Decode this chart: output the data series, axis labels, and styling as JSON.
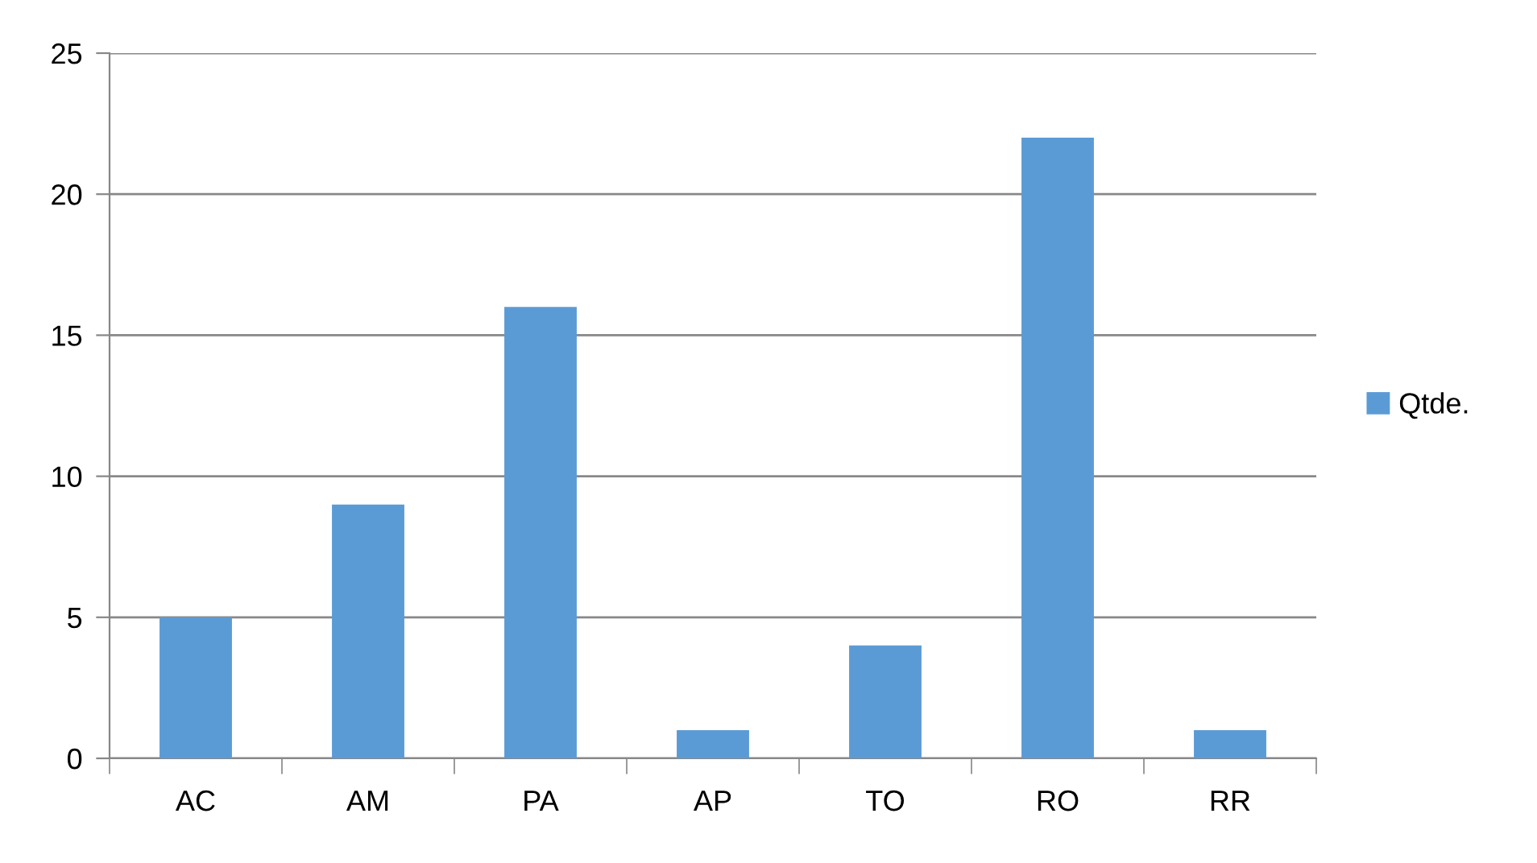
{
  "chart_data": {
    "type": "bar",
    "categories": [
      "AC",
      "AM",
      "PA",
      "AP",
      "TO",
      "RO",
      "RR"
    ],
    "series": [
      {
        "name": "Qtde.",
        "color": "#5b9bd5",
        "values": [
          5,
          9,
          16,
          1,
          4,
          22,
          1
        ]
      }
    ],
    "ylim": [
      0,
      25
    ],
    "yticks": [
      0,
      5,
      10,
      15,
      20,
      25
    ],
    "grid": "y",
    "legend": "right"
  }
}
